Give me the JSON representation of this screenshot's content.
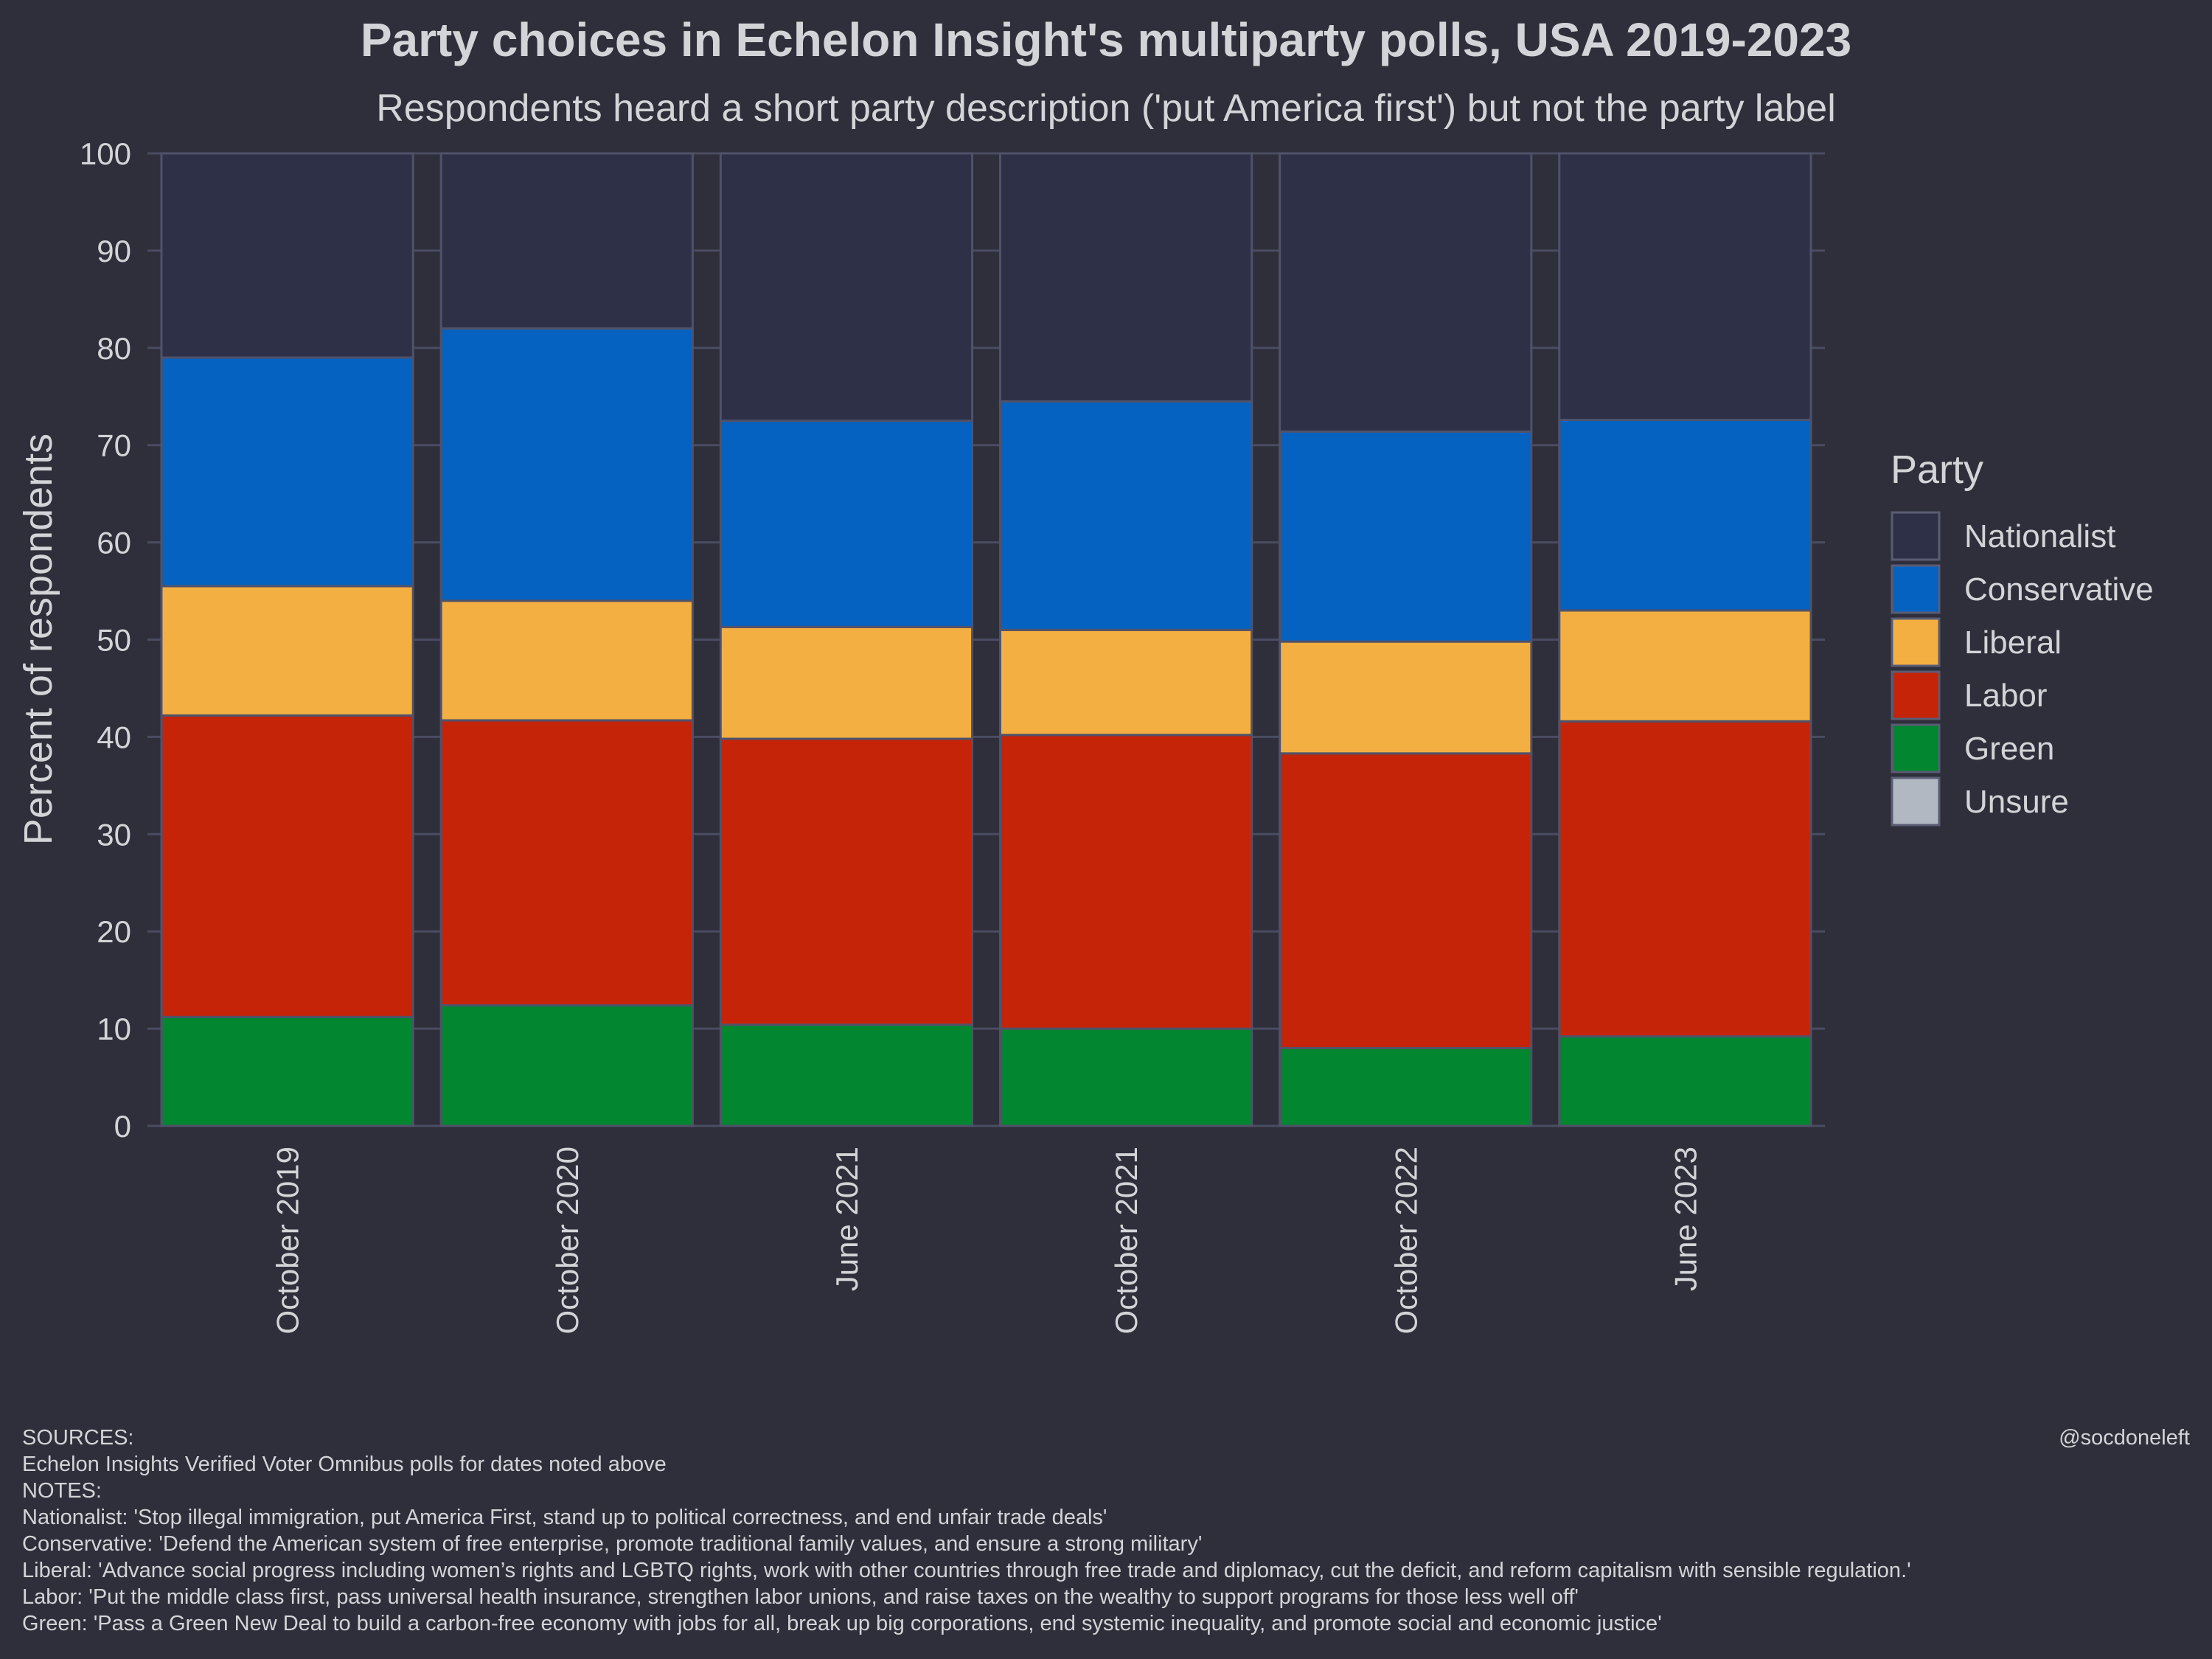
{
  "chart_data": {
    "type": "bar",
    "stacked": true,
    "title": "Party choices in Echelon Insight's multiparty polls, USA 2019-2023",
    "subtitle": "Respondents heard a short party description ('put America first') but not the party label",
    "xlabel": "",
    "ylabel": "Percent of respondents",
    "ylim": [
      0,
      100
    ],
    "yticks": [
      "0",
      "10",
      "20",
      "30",
      "40",
      "50",
      "60",
      "70",
      "80",
      "90",
      "100"
    ],
    "categories": [
      "October 2019",
      "October 2020",
      "June 2021",
      "October 2021",
      "October 2022",
      "June 2023"
    ],
    "legend_title": "Party",
    "legend_position": "right",
    "series": [
      {
        "name": "Green",
        "color": "#02862f",
        "values": [
          11.2,
          12.4,
          10.4,
          10.0,
          8.0,
          9.2
        ]
      },
      {
        "name": "Labor",
        "color": "#c62408",
        "values": [
          31.0,
          29.3,
          29.4,
          30.2,
          30.3,
          32.4
        ]
      },
      {
        "name": "Liberal",
        "color": "#f4af42",
        "values": [
          13.3,
          12.3,
          11.5,
          10.8,
          11.5,
          11.4
        ]
      },
      {
        "name": "Conservative",
        "color": "#0562c0",
        "values": [
          23.5,
          28.0,
          21.2,
          23.5,
          21.6,
          19.6
        ]
      },
      {
        "name": "Nationalist",
        "color": "#2e3048",
        "values": [
          21.0,
          18.0,
          27.5,
          25.5,
          28.6,
          27.4
        ]
      },
      {
        "name": "Unsure",
        "color": "#b2b8c2",
        "values": [
          0,
          0,
          0,
          0,
          0,
          0
        ]
      }
    ],
    "legend_order": [
      "Nationalist",
      "Conservative",
      "Liberal",
      "Labor",
      "Green",
      "Unsure"
    ]
  },
  "footer": {
    "lines": [
      "SOURCES:",
      "Echelon Insights Verified Voter Omnibus polls for dates noted above",
      "NOTES:",
      "Nationalist: 'Stop illegal immigration, put America First, stand up to political correctness, and end unfair trade deals'",
      "Conservative: 'Defend the American system of free enterprise, promote traditional family values, and ensure a strong military'",
      "Liberal: 'Advance social progress including women’s rights and LGBTQ rights, work with other countries through free trade and diplomacy, cut the deficit, and reform capitalism with sensible regulation.'",
      "Labor: 'Put the middle class first, pass universal health insurance, strengthen labor unions, and raise taxes on the wealthy to support programs for those less well off'",
      "Green: 'Pass a Green New Deal to build a carbon-free economy with jobs for all, break up big corporations, end systemic inequality, and promote social and economic justice'"
    ],
    "credit": "@socdoneleft"
  },
  "colors": {
    "background": "#2e2f3a",
    "grid": "#4a4c62",
    "text": "#d4d4d8"
  }
}
